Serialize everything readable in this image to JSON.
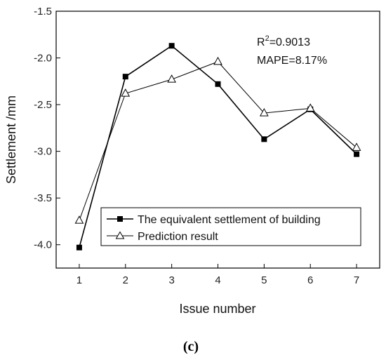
{
  "chart_data": {
    "type": "line",
    "xlabel": "Issue number",
    "ylabel": "Settlement /mm",
    "x": [
      1,
      2,
      3,
      4,
      5,
      6,
      7
    ],
    "xlim": [
      0.5,
      7.5
    ],
    "ylim": [
      -4.25,
      -1.5
    ],
    "yticks": [
      -4.0,
      -3.5,
      -3.0,
      -2.5,
      -2.0,
      -1.5
    ],
    "ytick_labels": [
      "-4.0",
      "-3.5",
      "-3.0",
      "-2.5",
      "-2.0",
      "-1.5"
    ],
    "xtick_labels": [
      "1",
      "2",
      "3",
      "4",
      "5",
      "6",
      "7"
    ],
    "series": [
      {
        "name": "The equivalent settlement of building",
        "marker": "filled-square",
        "values": [
          -4.03,
          -2.2,
          -1.87,
          -2.28,
          -2.87,
          -2.55,
          -3.03
        ]
      },
      {
        "name": "Prediction result",
        "marker": "open-triangle",
        "values": [
          -3.74,
          -2.38,
          -2.23,
          -2.04,
          -2.59,
          -2.54,
          -2.96
        ]
      }
    ],
    "annotations": {
      "r2_prefix": "R",
      "r2_sup": "2",
      "r2_value": "=0.9013",
      "mape": "MAPE=8.17%"
    },
    "legend_position": "lower-center",
    "grid": false
  },
  "caption": "(c)"
}
